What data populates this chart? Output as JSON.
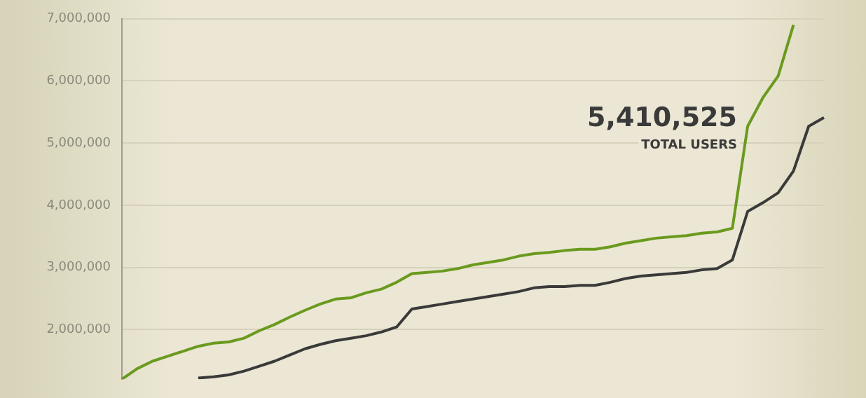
{
  "chart_data": {
    "type": "line",
    "categories": [
      null,
      null,
      null,
      null,
      null,
      null,
      null,
      null,
      null,
      null,
      null,
      null,
      null,
      null,
      null,
      null,
      null,
      null,
      null,
      null,
      null,
      null,
      null,
      null,
      null,
      null,
      null,
      null,
      null,
      null,
      null,
      null,
      null,
      null,
      null,
      null,
      null,
      null,
      null,
      null,
      null,
      null,
      null,
      null,
      null,
      null,
      null
    ],
    "series": [
      {
        "color": "#6a9a1e",
        "values": [
          1200000,
          1370000,
          1490000,
          1570000,
          1650000,
          1730000,
          1780000,
          1800000,
          1860000,
          1980000,
          2080000,
          2200000,
          2310000,
          2410000,
          2490000,
          2510000,
          2590000,
          2650000,
          2760000,
          2900000,
          2920000,
          2940000,
          2980000,
          3040000,
          3080000,
          3120000,
          3180000,
          3220000,
          3240000,
          3270000,
          3290000,
          3290000,
          3330000,
          3390000,
          3430000,
          3470000,
          3490000,
          3510000,
          3550000,
          3570000,
          3630000,
          5270000,
          5730000,
          6080000,
          6900000,
          null,
          null
        ]
      },
      {
        "color": "#3a3a3a",
        "values": [
          null,
          null,
          null,
          null,
          null,
          1220000,
          1240000,
          1270000,
          1330000,
          1410000,
          1490000,
          1590000,
          1690000,
          1760000,
          1820000,
          1860000,
          1900000,
          1960000,
          2040000,
          2330000,
          2370000,
          2410000,
          2450000,
          2490000,
          2530000,
          2570000,
          2610000,
          2670000,
          2690000,
          2690000,
          2710000,
          2710000,
          2760000,
          2820000,
          2860000,
          2880000,
          2900000,
          2920000,
          2960000,
          2980000,
          3120000,
          3900000,
          4040000,
          4200000,
          4550000,
          5270000,
          5410525
        ]
      }
    ],
    "annotations": [
      "5,410,525",
      "TOTAL USERS"
    ],
    "ylim": [
      1200000,
      7000000
    ],
    "yticks": [
      {
        "value": 2000000,
        "label": "2,000,000"
      },
      {
        "value": 3000000,
        "label": "3,000,000"
      },
      {
        "value": 4000000,
        "label": "4,000,000"
      },
      {
        "value": 5000000,
        "label": "5,000,000"
      },
      {
        "value": 6000000,
        "label": "6,000,000"
      },
      {
        "value": 7000000,
        "label": "7,000,000"
      }
    ],
    "grid": "y",
    "legend": false,
    "marker": "none",
    "line_style": "solid"
  }
}
